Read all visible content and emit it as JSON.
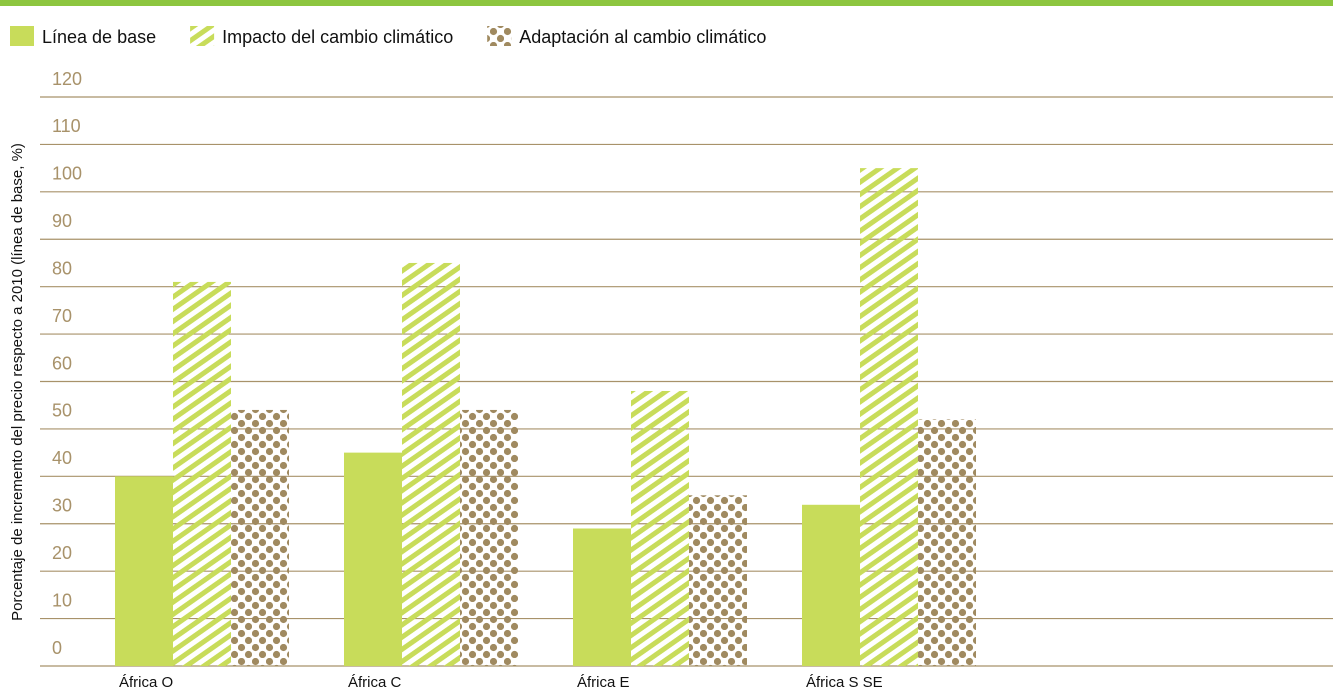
{
  "chart_data": {
    "type": "bar",
    "y_axis_label": "Porcentaje de incremento del precio respecto a 2010 (línea de base, %)",
    "categories": [
      "África O",
      "África C",
      "África E",
      "África S SE"
    ],
    "series": [
      {
        "name": "Línea de base",
        "color": "#c8dc5a",
        "pattern": "solid",
        "values": [
          40,
          45,
          29,
          34
        ]
      },
      {
        "name": "Impacto del cambio climático",
        "color": "#c8dc5a",
        "pattern": "hatch",
        "values": [
          81,
          85,
          58,
          105
        ]
      },
      {
        "name": "Adaptación al cambio climático",
        "color": "#a08a60",
        "pattern": "dots",
        "values": [
          54,
          54,
          36,
          52
        ]
      }
    ],
    "ylim": [
      0,
      120
    ],
    "yticks": [
      0,
      10,
      20,
      30,
      40,
      50,
      60,
      70,
      80,
      90,
      100,
      110,
      120
    ],
    "grid": true,
    "grid_color": "#a8926a",
    "legend": "top"
  }
}
